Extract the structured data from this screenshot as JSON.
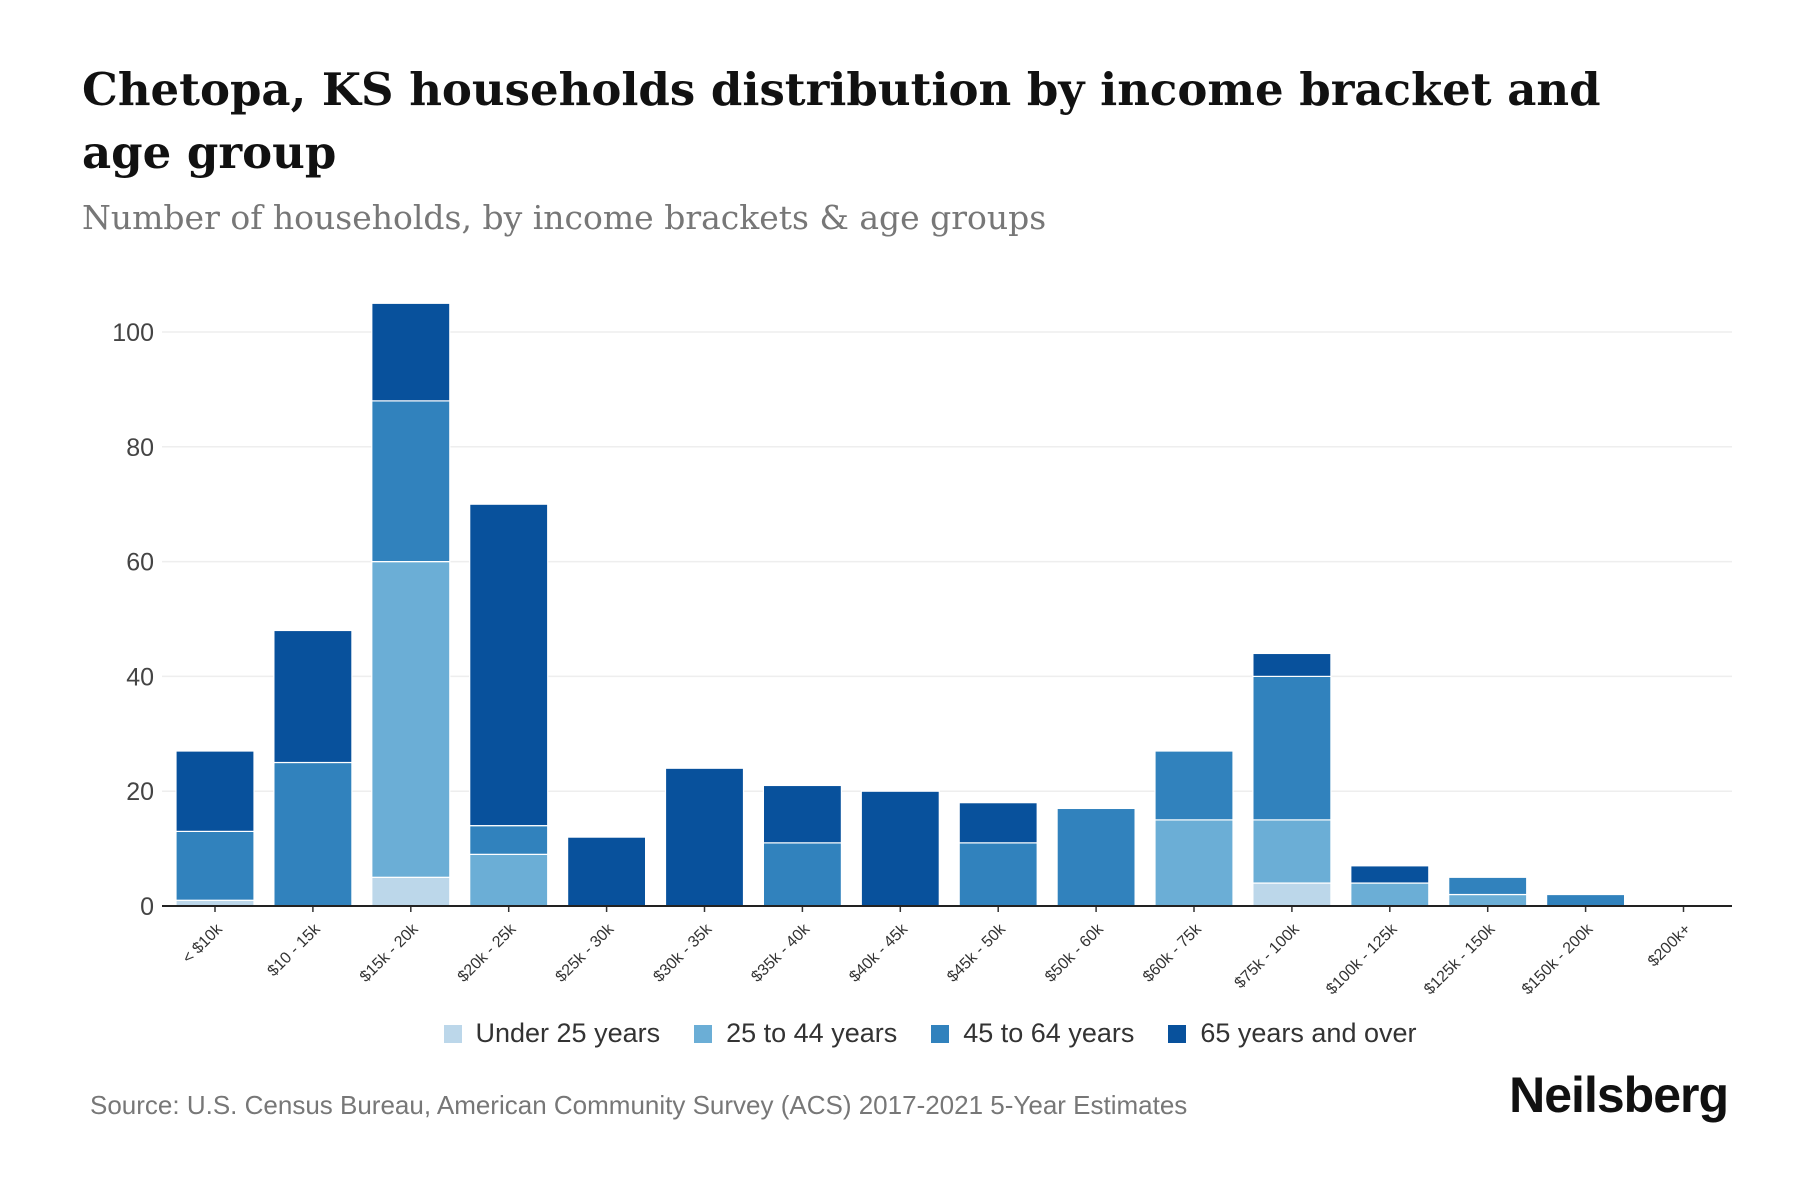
{
  "chart_data": {
    "type": "bar",
    "stacked": true,
    "title": "Chetopa, KS households distribution by income bracket and age group",
    "subtitle": "Number of households, by income brackets & age groups",
    "xlabel": "",
    "ylabel": "",
    "ylim": [
      0,
      105
    ],
    "yticks": [
      0,
      20,
      40,
      60,
      80,
      100
    ],
    "grid": true,
    "legend_position": "bottom",
    "categories": [
      "< $10k",
      "$10 - 15k",
      "$15k - 20k",
      "$20k - 25k",
      "$25k - 30k",
      "$30k - 35k",
      "$35k - 40k",
      "$40k - 45k",
      "$45k - 50k",
      "$50k - 60k",
      "$60k - 75k",
      "$75k - 100k",
      "$100k - 125k",
      "$125k - 150k",
      "$150k - 200k",
      "$200k+"
    ],
    "series": [
      {
        "name": "Under 25 years",
        "color": "#bcd7ea",
        "values": [
          1,
          0,
          5,
          0,
          0,
          0,
          0,
          0,
          0,
          0,
          0,
          4,
          0,
          0,
          0,
          0
        ]
      },
      {
        "name": "25 to 44 years",
        "color": "#6baed6",
        "values": [
          0,
          0,
          55,
          9,
          0,
          0,
          0,
          0,
          0,
          0,
          15,
          11,
          4,
          2,
          0,
          0
        ]
      },
      {
        "name": "45 to 64 years",
        "color": "#3182bd",
        "values": [
          12,
          25,
          28,
          5,
          0,
          0,
          11,
          0,
          11,
          17,
          12,
          25,
          0,
          3,
          2,
          0
        ]
      },
      {
        "name": "65 years and over",
        "color": "#08519c",
        "values": [
          14,
          23,
          17,
          56,
          12,
          24,
          10,
          20,
          7,
          0,
          0,
          4,
          3,
          0,
          0,
          0
        ]
      }
    ]
  },
  "source": "Source: U.S. Census Bureau, American Community Survey (ACS) 2017-2021 5-Year Estimates",
  "brand": "Neilsberg"
}
